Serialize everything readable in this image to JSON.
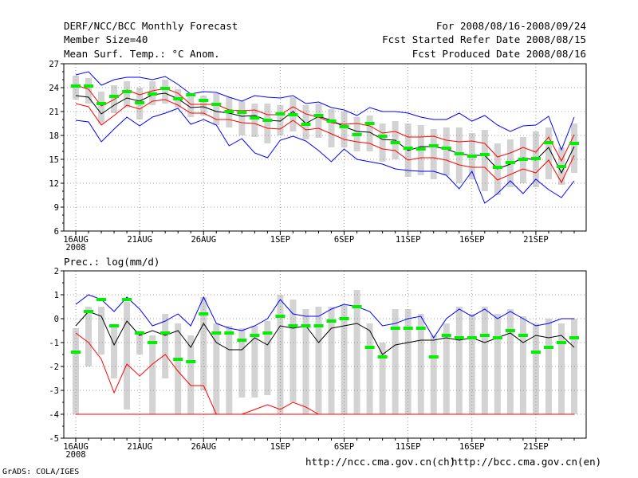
{
  "header": {
    "left": [
      "DERF/NCC/BCC Monthly Forecast",
      "Member Size=40",
      "Mean Surf. Temp.: °C Anom."
    ],
    "right": [
      "For 2008/08/16-2008/09/24",
      "Fcst Started Refer Date 2008/08/15",
      "Fcst Produced Date 2008/08/16"
    ]
  },
  "footer": {
    "credit": "GrADS: COLA/IGES",
    "links": [
      "http://ncc.cma.gov.cn(ch)",
      "http://bcc.cma.gov.cn(en)"
    ]
  },
  "colors": {
    "max": "#0000ff",
    "min": "#0000ff",
    "std": "#ff0000",
    "mean": "#000000",
    "obs": "#00ee00",
    "bar": "#d3d3d3",
    "grid": "#888888"
  },
  "chart_data": [
    {
      "type": "line",
      "title": "Mean Surf. Temp.: °C Anom.",
      "ylim": [
        6,
        27
      ],
      "yticks": [
        "6",
        "9",
        "12",
        "15",
        "18",
        "21",
        "24",
        "27"
      ],
      "xlim": [
        1,
        40
      ],
      "xticks": [
        {
          "day": 1,
          "label": "16AUG",
          "sub": "2008"
        },
        {
          "day": 6,
          "label": "21AUG"
        },
        {
          "day": 11,
          "label": "26AUG"
        },
        {
          "day": 17,
          "label": "1SEP"
        },
        {
          "day": 22,
          "label": "6SEP"
        },
        {
          "day": 27,
          "label": "11SEP"
        },
        {
          "day": 32,
          "label": "16SEP"
        },
        {
          "day": 37,
          "label": "21SEP"
        }
      ],
      "grid": true,
      "series": [
        {
          "name": "max",
          "values": [
            25.6,
            26.0,
            24.3,
            25.0,
            25.3,
            25.3,
            25.0,
            25.4,
            24.4,
            23.2,
            23.5,
            23.4,
            22.8,
            22.3,
            23.0,
            22.8,
            22.7,
            23.0,
            22.0,
            22.2,
            21.5,
            21.2,
            20.5,
            21.5,
            21.0,
            21.0,
            20.8,
            20.3,
            20.0,
            20.0,
            20.8,
            19.8,
            20.5,
            19.3,
            18.5,
            19.2,
            19.3,
            20.4,
            16.2,
            20.3
          ]
        },
        {
          "name": "upper",
          "values": [
            24.3,
            23.8,
            21.7,
            22.5,
            23.7,
            23.1,
            23.6,
            23.9,
            23.3,
            21.9,
            21.9,
            21.9,
            21.2,
            21.1,
            21.2,
            20.6,
            20.6,
            21.6,
            20.7,
            20.3,
            19.6,
            19.4,
            19.5,
            19.2,
            18.3,
            18.5,
            17.8,
            17.8,
            17.9,
            17.4,
            17.2,
            17.3,
            17.0,
            15.3,
            15.8,
            16.5,
            15.9,
            17.8,
            14.8,
            18.1
          ]
        },
        {
          "name": "mean",
          "values": [
            23.0,
            22.8,
            20.7,
            21.8,
            22.7,
            22.3,
            23.1,
            23.3,
            22.6,
            21.5,
            21.6,
            21.0,
            20.8,
            20.4,
            20.5,
            19.9,
            19.8,
            21.0,
            19.5,
            20.4,
            19.9,
            19.1,
            18.5,
            18.4,
            17.5,
            17.4,
            16.1,
            16.6,
            16.6,
            16.3,
            15.7,
            15.5,
            15.5,
            13.8,
            14.4,
            15.2,
            14.9,
            16.5,
            13.3,
            16.6
          ]
        },
        {
          "name": "lower",
          "values": [
            22.0,
            21.6,
            19.3,
            20.5,
            21.8,
            21.3,
            22.3,
            22.5,
            21.8,
            20.8,
            20.8,
            20.0,
            20.0,
            19.6,
            19.5,
            18.9,
            18.8,
            19.9,
            18.7,
            18.9,
            18.2,
            17.5,
            17.2,
            17.0,
            16.3,
            16.1,
            14.9,
            15.2,
            15.2,
            14.9,
            14.3,
            14.0,
            14.0,
            12.4,
            13.1,
            13.8,
            13.3,
            14.9,
            12.1,
            15.5
          ]
        },
        {
          "name": "min",
          "values": [
            19.9,
            19.7,
            17.2,
            18.8,
            20.3,
            19.2,
            20.3,
            20.8,
            21.4,
            19.4,
            20.0,
            19.3,
            16.7,
            17.6,
            15.8,
            15.2,
            17.4,
            17.9,
            17.3,
            16.1,
            14.7,
            16.3,
            15.0,
            14.7,
            14.4,
            13.8,
            13.6,
            13.5,
            13.5,
            13.0,
            11.3,
            13.5,
            9.5,
            10.7,
            12.3,
            10.7,
            12.5,
            11.2,
            10.2,
            12.3
          ]
        },
        {
          "name": "obs",
          "values": [
            24.2,
            24.2,
            22.0,
            22.9,
            23.5,
            22.1,
            23.2,
            23.9,
            22.6,
            23.1,
            22.4,
            21.9,
            21.0,
            20.9,
            20.2,
            19.9,
            20.7,
            20.6,
            19.4,
            20.5,
            19.8,
            19.1,
            18.1,
            19.5,
            17.9,
            17.1,
            16.4,
            16.3,
            16.7,
            16.4,
            15.7,
            15.4,
            15.6,
            14.0,
            14.6,
            15.0,
            15.1,
            17.1,
            14.1,
            17.0
          ]
        }
      ],
      "box_lo": [
        22.5,
        22.0,
        19.5,
        20.8,
        21.5,
        20.0,
        21.8,
        22.0,
        21.5,
        20.3,
        20.5,
        19.3,
        19.0,
        18.0,
        17.8,
        17.0,
        18.0,
        18.5,
        17.5,
        17.7,
        16.5,
        16.5,
        16.0,
        16.0,
        14.7,
        15.0,
        12.8,
        13.0,
        12.5,
        13.0,
        12.0,
        12.5,
        11.0,
        10.5,
        11.5,
        12.0,
        11.5,
        12.5,
        11.8,
        13.3
      ],
      "box_hi": [
        25.5,
        25.2,
        23.5,
        24.3,
        24.8,
        24.0,
        24.8,
        25.0,
        23.8,
        22.8,
        23.0,
        23.3,
        22.8,
        22.3,
        22.0,
        22.0,
        21.8,
        22.8,
        21.8,
        22.0,
        21.3,
        21.0,
        20.3,
        20.5,
        19.5,
        19.8,
        19.5,
        19.3,
        18.8,
        19.0,
        19.0,
        18.3,
        18.7,
        17.0,
        17.5,
        17.8,
        18.5,
        19.0,
        16.5,
        19.5
      ]
    },
    {
      "type": "line",
      "title": "Prec.: log(mm/d)",
      "ylim": [
        -5,
        2
      ],
      "yticks": [
        "-5",
        "-4",
        "-3",
        "-2",
        "-1",
        "0",
        "1",
        "2"
      ],
      "xlim": [
        1,
        40
      ],
      "xticks": [
        {
          "day": 1,
          "label": "16AUG",
          "sub": "2008"
        },
        {
          "day": 6,
          "label": "21AUG"
        },
        {
          "day": 11,
          "label": "26AUG"
        },
        {
          "day": 17,
          "label": "1SEP"
        },
        {
          "day": 22,
          "label": "6SEP"
        },
        {
          "day": 27,
          "label": "11SEP"
        },
        {
          "day": 32,
          "label": "16SEP"
        },
        {
          "day": 37,
          "label": "21SEP"
        }
      ],
      "grid": true,
      "series": [
        {
          "name": "max",
          "values": [
            0.6,
            1.0,
            0.8,
            0.3,
            0.9,
            0.4,
            -0.3,
            -0.1,
            0.2,
            -0.3,
            0.9,
            -0.2,
            -0.4,
            -0.5,
            -0.3,
            0.0,
            0.8,
            0.2,
            0.1,
            0.1,
            0.4,
            0.6,
            0.5,
            0.3,
            -0.3,
            -0.2,
            0.0,
            0.1,
            -0.8,
            0.0,
            0.4,
            0.1,
            0.4,
            0.0,
            0.3,
            0.0,
            -0.3,
            -0.2,
            0.0,
            0.0
          ]
        },
        {
          "name": "mean",
          "values": [
            -0.3,
            0.3,
            0.1,
            -1.1,
            -0.1,
            -0.7,
            -0.5,
            -0.7,
            -0.5,
            -1.2,
            -0.2,
            -1.0,
            -1.3,
            -1.3,
            -0.8,
            -1.1,
            -0.3,
            -0.4,
            -0.3,
            -1.0,
            -0.4,
            -0.3,
            -0.2,
            -0.5,
            -1.5,
            -1.1,
            -1.0,
            -0.9,
            -0.9,
            -0.8,
            -0.9,
            -0.8,
            -1.0,
            -0.8,
            -0.6,
            -1.0,
            -0.7,
            -0.8,
            -0.7,
            -1.2
          ]
        },
        {
          "name": "lower",
          "values": [
            -0.6,
            -1.0,
            -1.7,
            -3.1,
            -1.9,
            -2.4,
            -1.9,
            -1.5,
            -2.2,
            -2.8,
            -2.8,
            -4.0,
            -4.0,
            -4.0,
            -3.8,
            -3.6,
            -3.8,
            -3.5,
            -3.7,
            -4.0,
            -4.0,
            -4.0,
            -4.0,
            -4.0,
            -4.0,
            -4.0,
            -4.0,
            -4.0,
            -4.0,
            -4.0,
            -4.0,
            -4.0,
            -4.0,
            -4.0,
            -4.0,
            -4.0,
            -4.0,
            -4.0,
            -4.0,
            -4.0
          ]
        },
        {
          "name": "floor",
          "values": [
            -4,
            -4,
            -4,
            -4,
            -4,
            -4,
            -4,
            -4,
            -4,
            -4,
            -4,
            -4,
            -4,
            -4,
            -4,
            -4,
            -4,
            -4,
            -4,
            -4,
            -4,
            -4,
            -4,
            -4,
            -4,
            -4,
            -4,
            -4,
            -4,
            -4,
            -4,
            -4,
            -4,
            -4,
            -4,
            -4,
            -4,
            -4,
            -4,
            -4
          ]
        },
        {
          "name": "obs",
          "values": [
            -1.4,
            0.3,
            0.8,
            -0.3,
            0.8,
            -0.6,
            -1.0,
            -0.6,
            -1.7,
            -1.8,
            0.2,
            -0.6,
            -0.6,
            -0.9,
            -0.7,
            -0.6,
            0.1,
            -0.3,
            -0.3,
            -0.3,
            -0.1,
            0.0,
            0.5,
            -1.2,
            -1.6,
            -0.4,
            -0.4,
            -0.4,
            -1.6,
            -0.7,
            -0.8,
            -0.8,
            -0.7,
            -0.8,
            -0.5,
            -0.7,
            -1.4,
            -1.2,
            -1.0,
            -0.8
          ]
        }
      ],
      "box_lo": [
        -4,
        -2,
        -1.5,
        -2.5,
        -3.8,
        -1.5,
        -4,
        -2.5,
        -4,
        -4,
        -3,
        -4,
        -4,
        -3.3,
        -3.3,
        -3.2,
        -4,
        -3.5,
        -4,
        -4,
        -4,
        -4,
        -4,
        -4,
        -4,
        -4,
        -4,
        -4,
        -4,
        -4,
        -4,
        -4,
        -4,
        -4,
        -4,
        -4,
        -4,
        -4,
        -4,
        -4
      ],
      "box_hi": [
        -0.4,
        0.5,
        0.5,
        -0.3,
        0.7,
        -0.5,
        -0.7,
        0.2,
        -0.2,
        -0.7,
        0.9,
        -0.2,
        -0.3,
        -0.4,
        -0.3,
        -0.1,
        1.0,
        0.8,
        0.4,
        0.5,
        0.5,
        0.6,
        1.2,
        -0.2,
        -1.0,
        0.4,
        0.4,
        0.2,
        -0.7,
        -0.2,
        0.5,
        0.2,
        0.5,
        0.2,
        0.4,
        0.1,
        -0.2,
        0.0,
        -0.2,
        0.0
      ]
    }
  ]
}
